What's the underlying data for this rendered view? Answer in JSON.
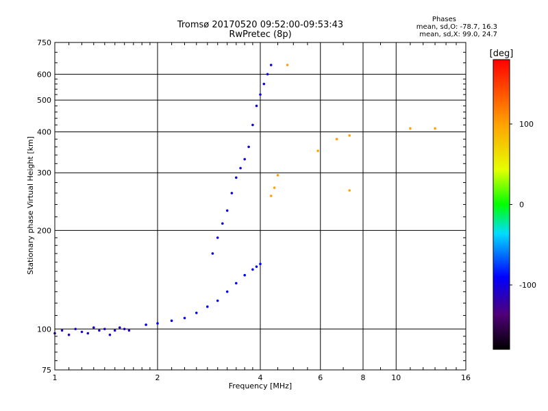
{
  "chart_data": {
    "type": "scatter",
    "title": "Tromsø 20170520 09:52:00-09:53:43",
    "subtitle": "RwPretec (8p)",
    "xlabel": "Frequency [MHz]",
    "ylabel": "Stationary phase Virtual Height [km]",
    "x_scale": "log",
    "y_scale": "log",
    "xlim": [
      1,
      16
    ],
    "ylim": [
      75,
      750
    ],
    "x_ticks": [
      1,
      2,
      4,
      6,
      8,
      10,
      16
    ],
    "y_ticks": [
      75,
      100,
      200,
      300,
      400,
      500,
      600,
      750
    ],
    "grid": true,
    "phases_box": {
      "title": "Phases",
      "line_o": "mean, sd,O: -78.7, 16.3",
      "line_x": "mean, sd,X:  99.0, 24.7"
    },
    "colorbar": {
      "label": "[deg]",
      "range": [
        -180,
        180
      ],
      "ticks": [
        "100",
        "0",
        "-100"
      ],
      "tick_values": [
        100,
        0,
        -100
      ]
    },
    "color_scale": "rainbow: black(-180) → purple → blue → cyan → green → yellow → orange → red(180)",
    "series": [
      {
        "note": "O-mode trace: low-band scatter near 100 km",
        "x": [
          1.0,
          1.05,
          1.1,
          1.15,
          1.2,
          1.25,
          1.3,
          1.35,
          1.4,
          1.45,
          1.5,
          1.55,
          1.6,
          1.65
        ],
        "y": [
          97,
          99,
          96,
          100,
          98,
          97,
          101,
          99,
          100,
          96,
          99,
          101,
          100,
          99
        ],
        "phase_deg": -110
      },
      {
        "note": "O-mode trace: rising to F region",
        "x": [
          1.85,
          2.0,
          2.2,
          2.4,
          2.6,
          2.8,
          3.0,
          3.2,
          3.4,
          3.6,
          3.8,
          3.9,
          4.0
        ],
        "y": [
          103,
          104,
          106,
          108,
          112,
          117,
          122,
          130,
          138,
          146,
          152,
          155,
          158
        ],
        "phase_deg": -90
      },
      {
        "note": "O-mode F-layer column",
        "x": [
          2.9,
          3.0,
          3.1,
          3.2,
          3.3,
          3.4,
          3.5,
          3.6,
          3.7,
          3.8,
          3.9,
          4.0,
          4.1,
          4.2,
          4.3
        ],
        "y": [
          170,
          190,
          210,
          230,
          260,
          290,
          310,
          330,
          360,
          420,
          480,
          520,
          560,
          600,
          640
        ],
        "phase_deg": -100
      },
      {
        "note": "X-mode traces (yellow/orange)",
        "x": [
          4.3,
          4.4,
          4.5,
          4.8,
          5.9,
          6.7,
          7.3,
          7.3,
          11.0,
          13.0
        ],
        "y": [
          255,
          270,
          295,
          640,
          350,
          380,
          390,
          265,
          410,
          410
        ],
        "phase_deg": 100
      }
    ]
  }
}
